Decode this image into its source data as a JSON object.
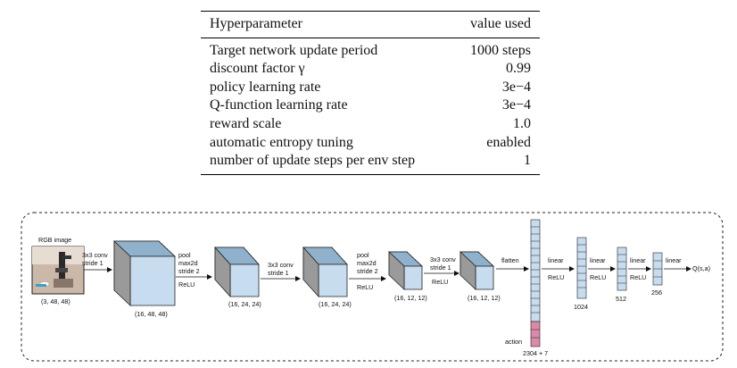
{
  "table": {
    "headers": [
      "Hyperparameter",
      "value used"
    ],
    "rows": [
      {
        "name": "Target network update period",
        "value": "1000 steps"
      },
      {
        "name": "discount factor γ",
        "value": "0.99"
      },
      {
        "name": "policy learning rate",
        "value": "3e−4"
      },
      {
        "name": "Q-function learning rate",
        "value": "3e−4"
      },
      {
        "name": "reward scale",
        "value": "1.0"
      },
      {
        "name": "automatic entropy tuning",
        "value": "enabled"
      },
      {
        "name": "number of update steps per env step",
        "value": "1"
      }
    ]
  },
  "diagram": {
    "input_label": "RGB image",
    "input_shape": "(3, 48, 48)",
    "op1": [
      "3x3 conv",
      "stride 1"
    ],
    "shape1": "(16, 48, 48)",
    "pool1": [
      "pool",
      "max2d",
      "stride 2",
      "ReLU"
    ],
    "shape2": "(16, 24, 24)",
    "op2": [
      "3x3 conv",
      "stride 1"
    ],
    "shape3": "(16, 24, 24)",
    "pool2": [
      "pool",
      "max2d",
      "stride 2",
      "ReLU"
    ],
    "shape4": "(16, 12, 12)",
    "op3": [
      "3x3 conv",
      "stride 1",
      "ReLU"
    ],
    "shape5": "(16, 12, 12)",
    "flatten": "flatten",
    "linear1": [
      "linear",
      "ReLU"
    ],
    "linear2": [
      "linear",
      "ReLU"
    ],
    "linear3": [
      "linear",
      "ReLU"
    ],
    "linear4": "linear",
    "size1024": "1024",
    "size512": "512",
    "size256": "256",
    "output": "Q(s,a)",
    "action": "action",
    "concat_size": "2304 + 7"
  }
}
